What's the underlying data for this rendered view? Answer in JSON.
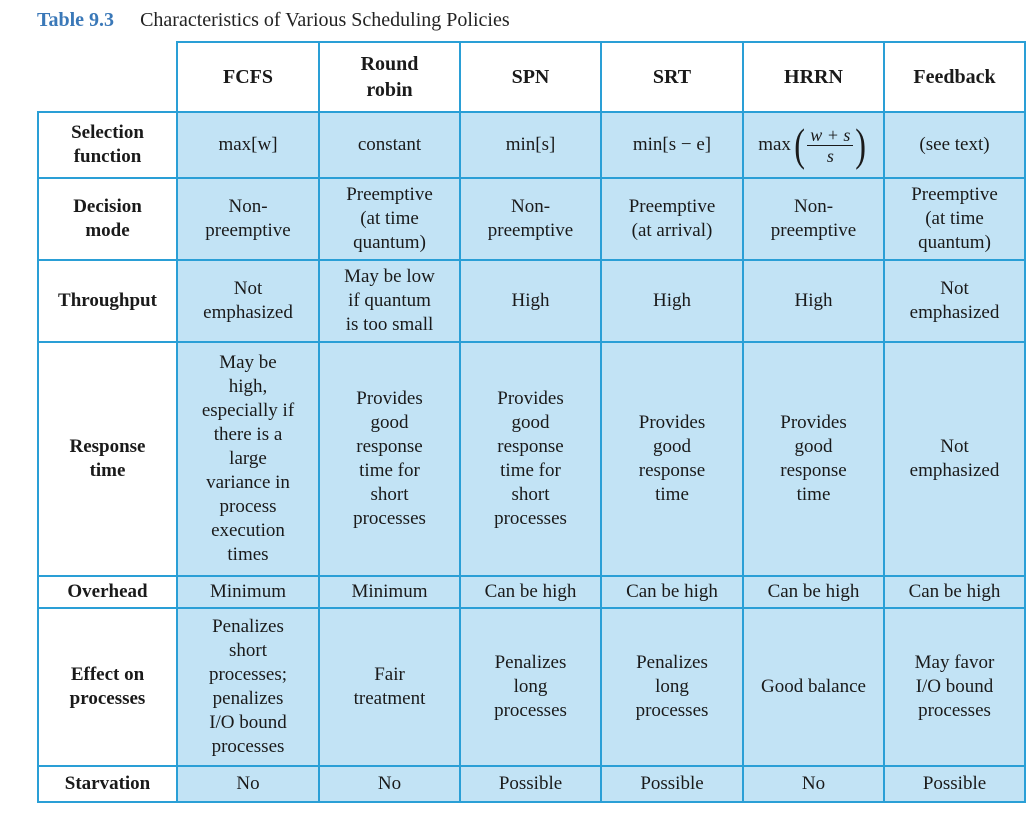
{
  "caption": {
    "number": "Table 9.3",
    "title": "Characteristics of Various Scheduling Policies"
  },
  "columns": [
    "FCFS",
    "Round\nrobin",
    "SPN",
    "SRT",
    "HRRN",
    "Feedback"
  ],
  "rows": [
    {
      "label": "Selection\nfunction",
      "cells": [
        "max[w]",
        "constant",
        "min[s]",
        "min[s − e]",
        "",
        "(see text)"
      ]
    },
    {
      "label": "Decision\nmode",
      "cells": [
        "Non-\npreemptive",
        "Preemptive\n(at time\nquantum)",
        "Non-\npreemptive",
        "Preemptive\n(at arrival)",
        "Non-\npreemptive",
        "Preemptive\n(at time\nquantum)"
      ]
    },
    {
      "label": "Throughput",
      "cells": [
        "Not\nemphasized",
        "May be low\nif quantum\nis too small",
        "High",
        "High",
        "High",
        "Not\nemphasized"
      ]
    },
    {
      "label": "Response\ntime",
      "cells": [
        "May be\nhigh,\nespecially if\nthere is a\nlarge\nvariance in\nprocess\nexecution\ntimes",
        "Provides\ngood\nresponse\ntime for\nshort\nprocesses",
        "Provides\ngood\nresponse\ntime for\nshort\nprocesses",
        "Provides\ngood\nresponse\ntime",
        "Provides\ngood\nresponse\ntime",
        "Not\nemphasized"
      ]
    },
    {
      "label": "Overhead",
      "cells": [
        "Minimum",
        "Minimum",
        "Can be high",
        "Can be high",
        "Can be high",
        "Can be high"
      ]
    },
    {
      "label": "Effect on\nprocesses",
      "cells": [
        "Penalizes\nshort\nprocesses;\npenalizes\nI/O bound\nprocesses",
        "Fair\ntreatment",
        "Penalizes\nlong\nprocesses",
        "Penalizes\nlong\nprocesses",
        "Good balance",
        "May favor\nI/O bound\nprocesses"
      ]
    },
    {
      "label": "Starvation",
      "cells": [
        "No",
        "No",
        "Possible",
        "Possible",
        "No",
        "Possible"
      ]
    }
  ],
  "hrrn_formula": {
    "fn": "max",
    "numerator": "w + s",
    "denominator": "s"
  }
}
